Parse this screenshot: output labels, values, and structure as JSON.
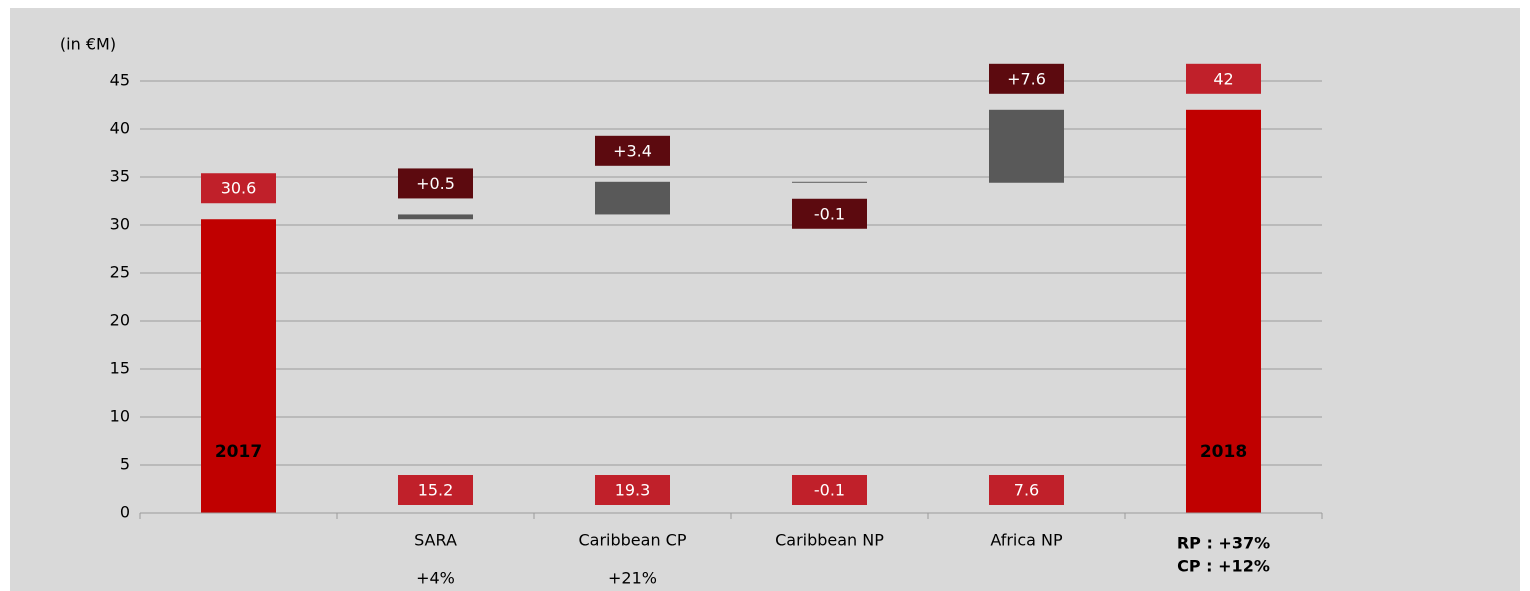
{
  "chart_data": {
    "type": "waterfall",
    "axis_label": "(in €M)",
    "categories": [
      null,
      "SARA",
      "Caribbean CP",
      "Caribbean NP",
      "Africa NP",
      null
    ],
    "values": [
      30.6,
      0.5,
      3.4,
      -0.1,
      7.6,
      42
    ],
    "value_labels": [
      "30.6",
      "+0.5",
      "+3.4",
      "-0.1",
      "+7.6",
      "42"
    ],
    "totals": [
      true,
      false,
      false,
      false,
      false,
      true
    ],
    "bar_labels": [
      "2017",
      null,
      null,
      null,
      null,
      "2018"
    ],
    "secondary_values": [
      null,
      15.2,
      19.3,
      -0.1,
      7.6,
      null
    ],
    "growth": [
      null,
      "+4%",
      "+21%",
      null,
      null,
      null
    ],
    "summary": [
      "RP : +37%",
      "CP : +12%"
    ],
    "total_color": "#c00000",
    "delta_color": "#595959",
    "total_label_color": "#c0202a",
    "delta_label_color": "#5c0a0f",
    "secondary_label_color": "#c0202a",
    "ylim": [
      0,
      45
    ],
    "yticks": [
      0,
      5,
      10,
      15,
      20,
      25,
      30,
      35,
      40,
      45
    ],
    "grid": true
  }
}
